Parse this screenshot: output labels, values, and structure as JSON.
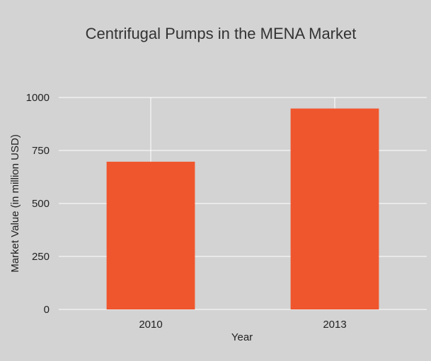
{
  "chart_data": {
    "type": "bar",
    "title": "Centrifugal Pumps in the MENA Market",
    "xlabel": "Year",
    "ylabel": "Market Value (in million USD)",
    "categories": [
      "2010",
      "2013"
    ],
    "values": [
      697,
      948
    ],
    "ylim": [
      0,
      1000
    ],
    "yticks": [
      0,
      250,
      500,
      750,
      1000
    ],
    "grid": true,
    "legend": "none",
    "colors": {
      "bar": "#f0562e",
      "background": "#d3d3d3",
      "grid": "#ffffff"
    }
  }
}
